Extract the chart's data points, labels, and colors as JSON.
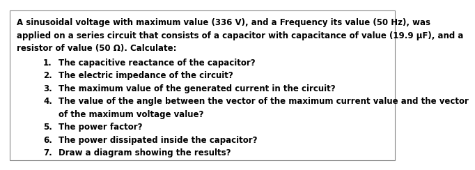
{
  "para_line1": "A sinusoidal voltage with maximum value (336 V), and a Frequency its value (50 Hz), was",
  "para_line2": "applied on a series circuit that consists of a capacitor with capacitance of value (19.9 μF), and a",
  "para_line3": "resistor of value (50 Ω). Calculate:",
  "items": [
    "The capacitive reactance of the capacitor?",
    "The electric impedance of the circuit?",
    "The maximum value of the generated current in the circuit?",
    "The value of the angle between the vector of the maximum current value and the vector",
    "of the maximum voltage value?",
    "The power factor?",
    "The power dissipated inside the capacitor?",
    "Draw a diagram showing the results?"
  ],
  "item_numbers": [
    "1.",
    "2.",
    "3.",
    "4.",
    "",
    "5.",
    "6.",
    "7."
  ],
  "item_indents": [
    true,
    true,
    true,
    true,
    false,
    true,
    true,
    true
  ],
  "bg_color": "#ffffff",
  "border_color": "#888888",
  "text_color": "#000000",
  "font_size": 8.5
}
